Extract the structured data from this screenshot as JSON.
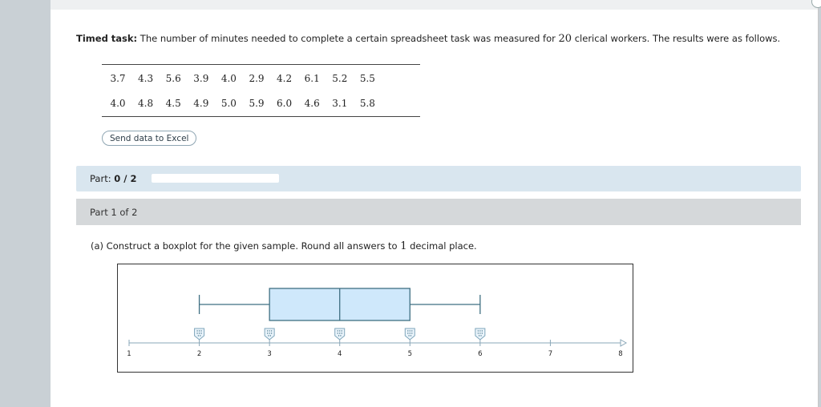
{
  "task": {
    "label": "Timed task:",
    "text_before": " The number of minutes needed to complete a certain spreadsheet task was measured for ",
    "n": "20",
    "text_after": " clerical workers. The results were as follows."
  },
  "data_rows": [
    [
      "3.7",
      "4.3",
      "5.6",
      "3.9",
      "4.0",
      "2.9",
      "4.2",
      "6.1",
      "5.2",
      "5.5"
    ],
    [
      "4.0",
      "4.8",
      "4.5",
      "4.9",
      "5.0",
      "5.9",
      "6.0",
      "4.6",
      "3.1",
      "5.8"
    ]
  ],
  "excel_button": "Send data to Excel",
  "part_status": {
    "label": "Part:",
    "value": "0 / 2",
    "progress": 0
  },
  "part_header": "Part 1 of 2",
  "question": {
    "text_before": "(a) Construct a boxplot for the given sample. Round all answers to ",
    "decimals": "1",
    "text_after": " decimal place."
  },
  "chart_data": {
    "type": "boxplot",
    "axis": {
      "min": 1,
      "max": 8,
      "ticks": [
        "1",
        "2",
        "3",
        "4",
        "5",
        "6",
        "7",
        "8"
      ]
    },
    "box": {
      "min": 2.0,
      "q1": 3.0,
      "median": 4.0,
      "q3": 5.0,
      "max": 6.0
    },
    "handles": [
      2,
      3,
      4,
      5,
      6
    ]
  }
}
